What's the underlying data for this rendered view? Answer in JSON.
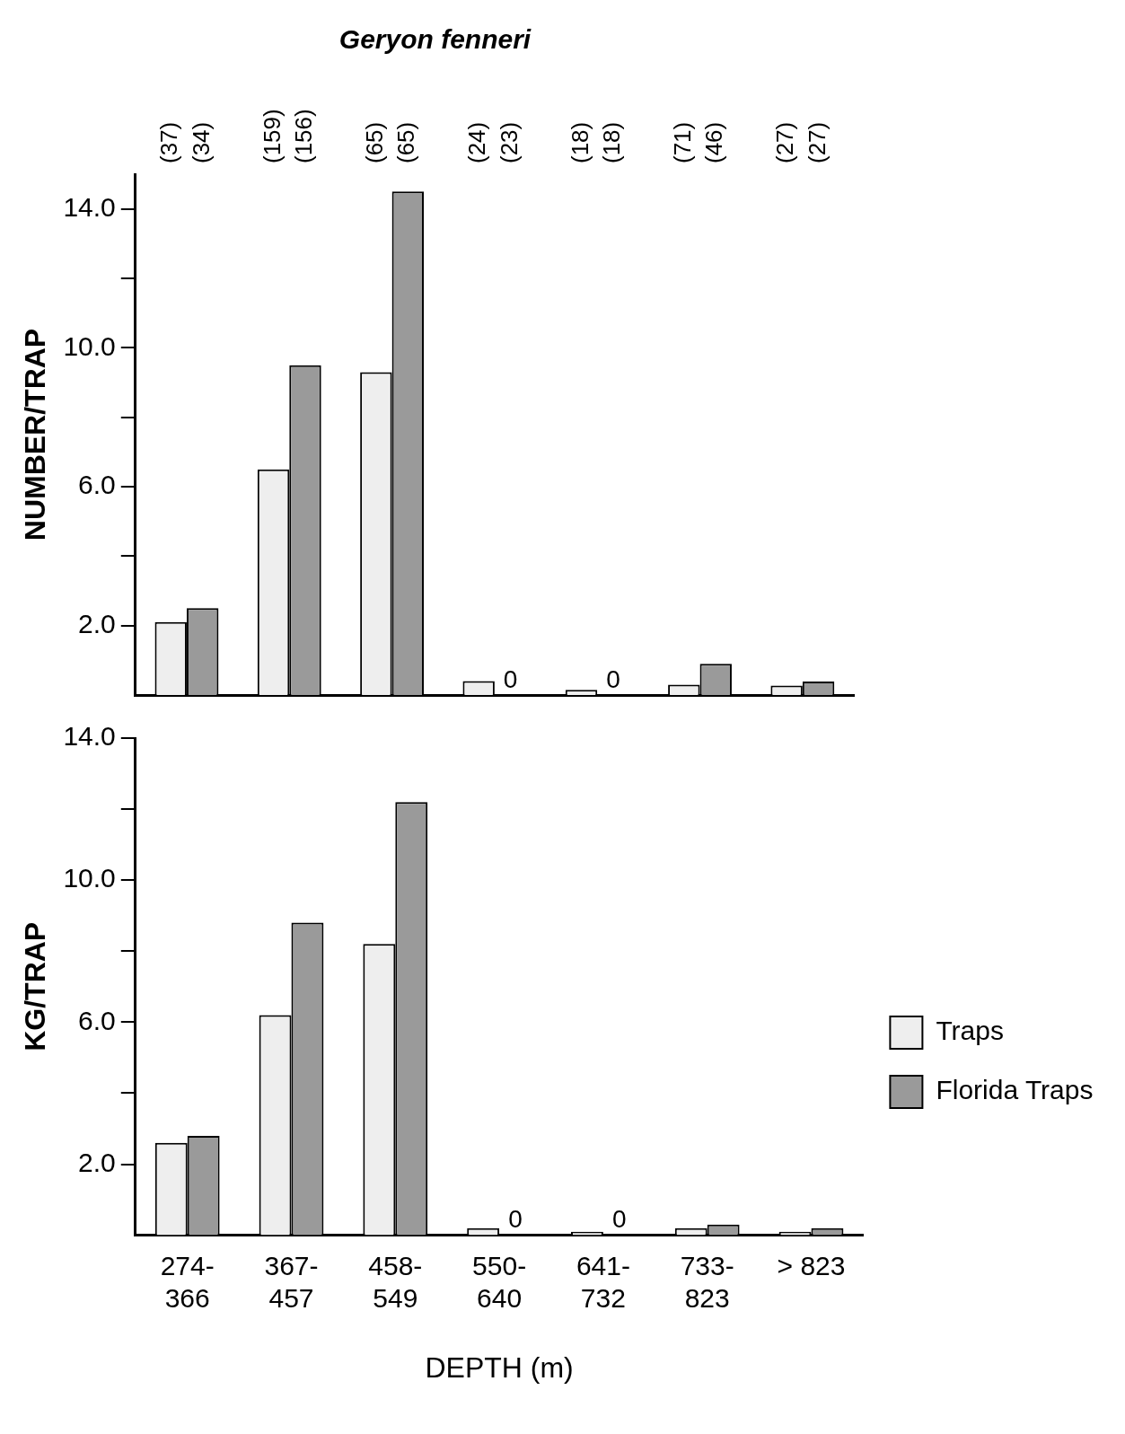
{
  "chart_data": [
    {
      "type": "bar",
      "title": "Geryon fenneri",
      "ylabel": "NUMBER/TRAP",
      "categories": [
        null,
        null,
        null,
        null,
        null,
        null,
        null
      ],
      "series": [
        {
          "color": "#eeeeee",
          "values": [
            2.1,
            6.5,
            9.3,
            0.4,
            0.15,
            0.3,
            0.27
          ]
        },
        {
          "color": "#9a9a9a",
          "values": [
            2.5,
            9.5,
            14.5,
            0,
            0,
            0.9,
            0.39
          ],
          "value_labels": [
            null,
            null,
            null,
            "0",
            "0",
            null,
            null
          ]
        }
      ],
      "ylim": [
        0,
        15
      ],
      "yticks": [
        {
          "value": 2,
          "label": "2.0"
        },
        {
          "value": 4,
          "label": null
        },
        {
          "value": 6,
          "label": "6.0"
        },
        {
          "value": 8,
          "label": null
        },
        {
          "value": 10,
          "label": "10.0"
        },
        {
          "value": 12,
          "label": null
        },
        {
          "value": 14,
          "label": "14.0"
        }
      ],
      "tick_labels": "y",
      "legend": false,
      "annotations": [
        "(37)",
        "(34)",
        "(159)",
        "(156)",
        "(65)",
        "(65)",
        "(24)",
        "(23)",
        "(18)",
        "(18)",
        "(71)",
        "(46)",
        "(27)",
        "(27)"
      ]
    },
    {
      "type": "bar",
      "ylabel": "KG/TRAP",
      "xlabel": "DEPTH (m)",
      "categories": [
        "274-366",
        "367-457",
        "458-549",
        "550-640",
        "641-732",
        "733-823",
        "> 823"
      ],
      "series": [
        {
          "name": "Traps",
          "color": "#eeeeee",
          "values": [
            2.6,
            6.2,
            8.2,
            0.2,
            0.1,
            0.2,
            0.1
          ]
        },
        {
          "name": "Florida Traps",
          "color": "#9a9a9a",
          "values": [
            2.8,
            8.8,
            12.2,
            0,
            0,
            0.3,
            0.2
          ],
          "value_labels": [
            null,
            null,
            null,
            "0",
            "0",
            null,
            null
          ]
        }
      ],
      "ylim": [
        0,
        14
      ],
      "yticks": [
        {
          "value": 2,
          "label": "2.0"
        },
        {
          "value": 4,
          "label": null
        },
        {
          "value": 6,
          "label": "6.0"
        },
        {
          "value": 8,
          "label": null
        },
        {
          "value": 10,
          "label": "10.0"
        },
        {
          "value": 12,
          "label": null
        },
        {
          "value": 14,
          "label": "14.0"
        }
      ],
      "legend": "right"
    }
  ]
}
